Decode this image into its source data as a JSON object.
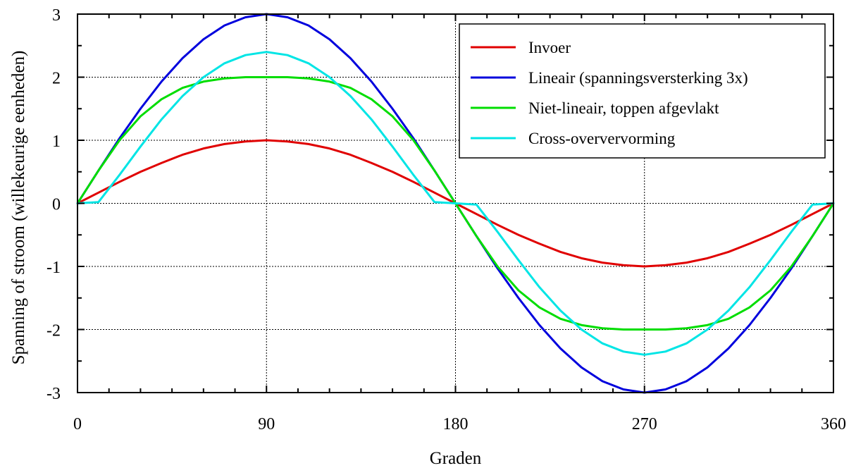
{
  "chart_data": {
    "type": "line",
    "title": "",
    "xlabel": "Graden",
    "ylabel": "Spanning of stroom (willekeurige eenheden)",
    "xlim": [
      0,
      360
    ],
    "ylim": [
      -3,
      3
    ],
    "x_ticks": [
      0,
      90,
      180,
      270,
      360
    ],
    "x_tick_labels": [
      "0",
      "90",
      "180",
      "270",
      "360"
    ],
    "y_ticks": [
      3,
      2,
      1,
      0,
      -1,
      -2,
      -3
    ],
    "y_tick_labels": [
      "3",
      "2",
      "1",
      "0",
      "-1",
      "-2",
      "-3"
    ],
    "grid": true,
    "legend_position": "top-right",
    "x": [
      0,
      10,
      20,
      30,
      40,
      50,
      60,
      70,
      80,
      90,
      100,
      110,
      120,
      130,
      140,
      150,
      160,
      170,
      180,
      190,
      200,
      210,
      220,
      230,
      240,
      250,
      260,
      270,
      280,
      290,
      300,
      310,
      320,
      330,
      340,
      350,
      360
    ],
    "series": [
      {
        "name": "Invoer",
        "color": "#e00000",
        "values": [
          0,
          0.17,
          0.34,
          0.5,
          0.64,
          0.77,
          0.87,
          0.94,
          0.98,
          1.0,
          0.98,
          0.94,
          0.87,
          0.77,
          0.64,
          0.5,
          0.34,
          0.17,
          0,
          -0.17,
          -0.34,
          -0.5,
          -0.64,
          -0.77,
          -0.87,
          -0.94,
          -0.98,
          -1.0,
          -0.98,
          -0.94,
          -0.87,
          -0.77,
          -0.64,
          -0.5,
          -0.34,
          -0.17,
          0
        ]
      },
      {
        "name": "Lineair (spanningsversterking 3x)",
        "color": "#0000dd",
        "values": [
          0,
          0.52,
          1.03,
          1.5,
          1.93,
          2.3,
          2.6,
          2.82,
          2.95,
          3.0,
          2.95,
          2.82,
          2.6,
          2.3,
          1.93,
          1.5,
          1.03,
          0.52,
          0,
          -0.52,
          -1.03,
          -1.5,
          -1.93,
          -2.3,
          -2.6,
          -2.82,
          -2.95,
          -3.0,
          -2.95,
          -2.82,
          -2.6,
          -2.3,
          -1.93,
          -1.5,
          -1.03,
          -0.52,
          0
        ]
      },
      {
        "name": "Niet-lineair, toppen afgevlakt",
        "color": "#00dd00",
        "values": [
          0,
          0.52,
          1.0,
          1.38,
          1.65,
          1.83,
          1.93,
          1.98,
          2.0,
          2.0,
          2.0,
          1.98,
          1.93,
          1.83,
          1.65,
          1.38,
          1.0,
          0.52,
          0,
          -0.52,
          -1.0,
          -1.38,
          -1.65,
          -1.83,
          -1.93,
          -1.98,
          -2.0,
          -2.0,
          -2.0,
          -1.98,
          -1.93,
          -1.83,
          -1.65,
          -1.38,
          -1.0,
          -0.52,
          0
        ]
      },
      {
        "name": "Cross-oververvorming",
        "color": "#00e5e5",
        "values": [
          0,
          0.02,
          0.45,
          0.9,
          1.33,
          1.7,
          2.0,
          2.22,
          2.35,
          2.4,
          2.35,
          2.22,
          2.0,
          1.7,
          1.33,
          0.9,
          0.45,
          0.02,
          0,
          -0.02,
          -0.45,
          -0.9,
          -1.33,
          -1.7,
          -2.0,
          -2.22,
          -2.35,
          -2.4,
          -2.35,
          -2.22,
          -2.0,
          -1.7,
          -1.33,
          -0.9,
          -0.45,
          -0.02,
          0
        ]
      }
    ]
  }
}
